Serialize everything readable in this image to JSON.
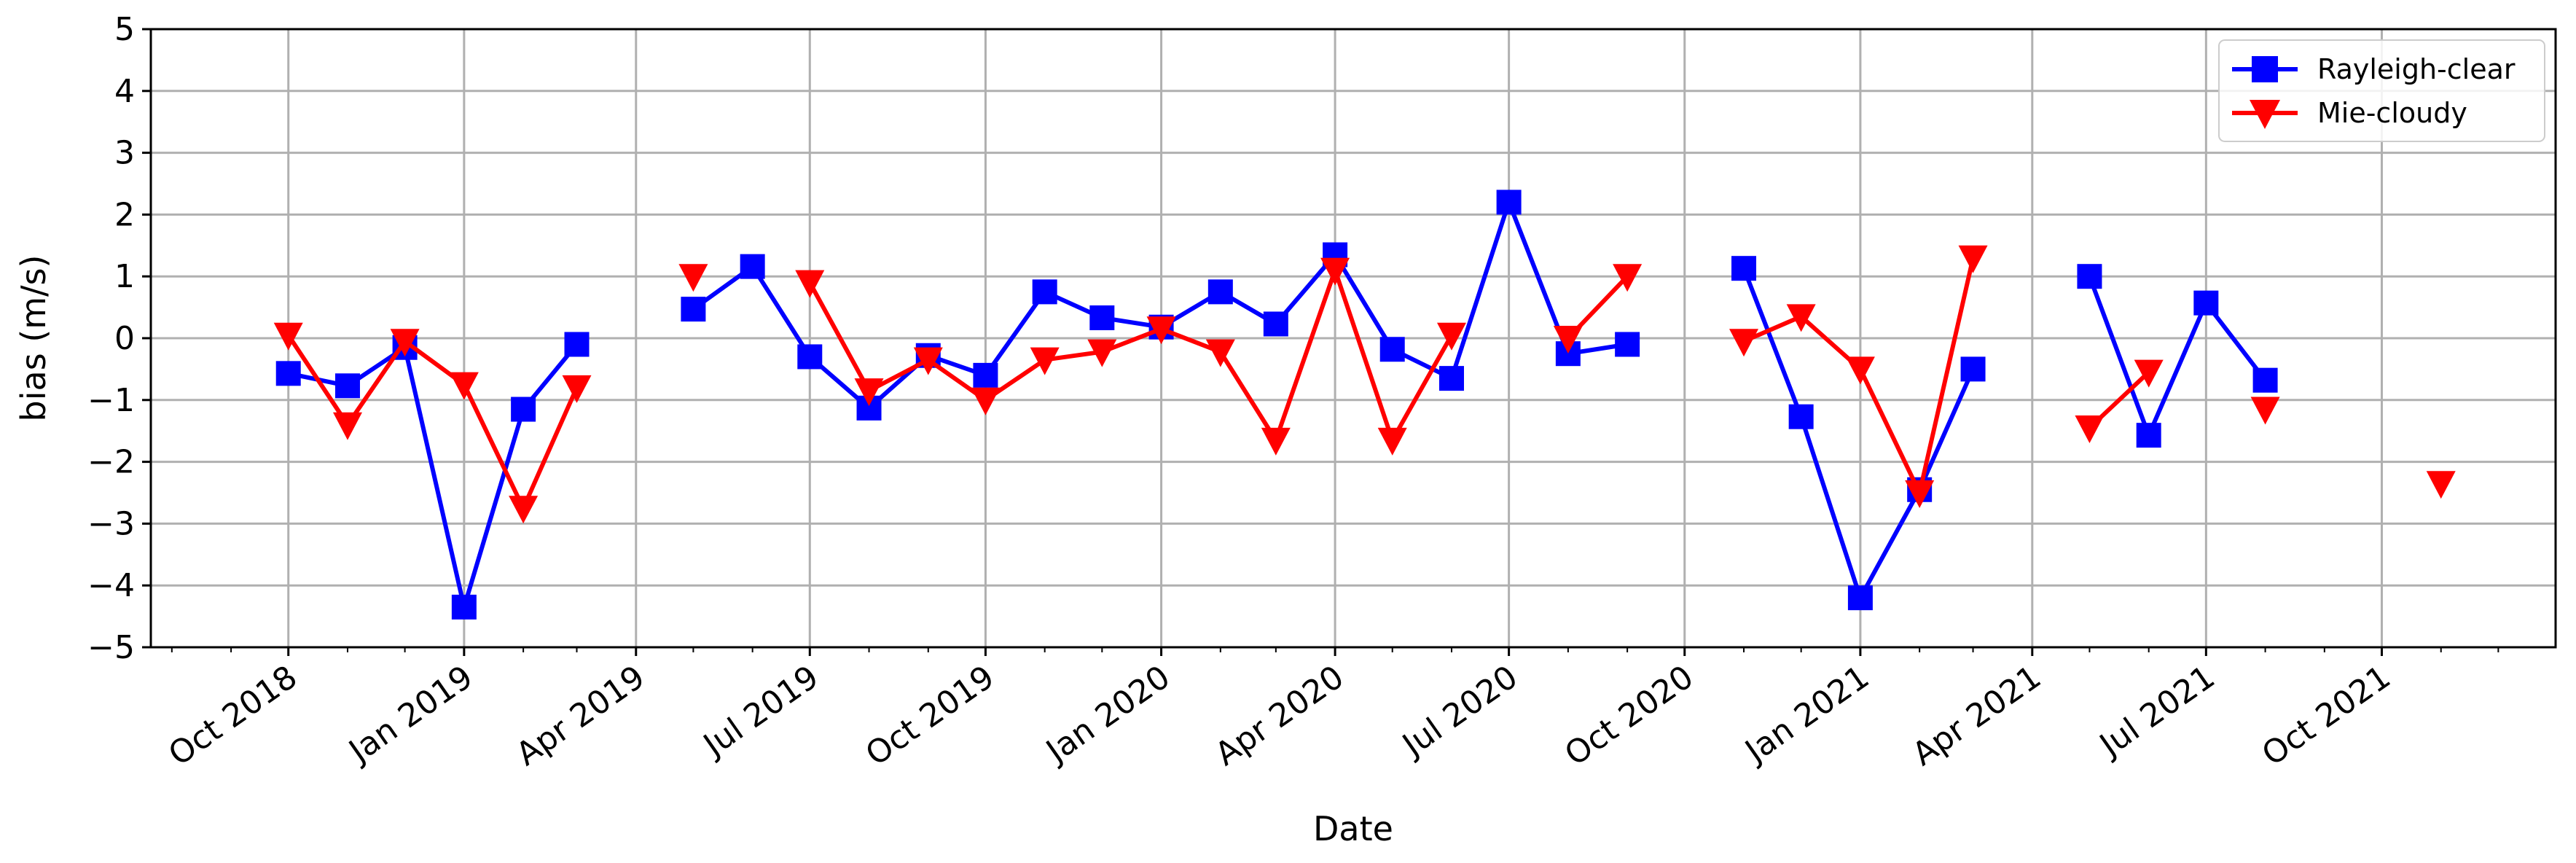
{
  "chart_data": {
    "type": "line",
    "title": "",
    "xlabel": "Date",
    "ylabel": "bias (m/s)",
    "ylim": [
      -5,
      5
    ],
    "yticks": [
      -5,
      -4,
      -3,
      -2,
      -1,
      0,
      1,
      2,
      3,
      4,
      5
    ],
    "xlim": [
      "2018-07-21",
      "2021-12-31"
    ],
    "xticks": [
      {
        "date": "2018-10-01",
        "label": "Oct 2018"
      },
      {
        "date": "2019-01-01",
        "label": "Jan 2019"
      },
      {
        "date": "2019-04-01",
        "label": "Apr 2019"
      },
      {
        "date": "2019-07-01",
        "label": "Jul 2019"
      },
      {
        "date": "2019-10-01",
        "label": "Oct 2019"
      },
      {
        "date": "2020-01-01",
        "label": "Jan 2020"
      },
      {
        "date": "2020-04-01",
        "label": "Apr 2020"
      },
      {
        "date": "2020-07-01",
        "label": "Jul 2020"
      },
      {
        "date": "2020-10-01",
        "label": "Oct 2020"
      },
      {
        "date": "2021-01-01",
        "label": "Jan 2021"
      },
      {
        "date": "2021-04-01",
        "label": "Apr 2021"
      },
      {
        "date": "2021-07-01",
        "label": "Jul 2021"
      },
      {
        "date": "2021-10-01",
        "label": "Oct 2021"
      }
    ],
    "grid": true,
    "legend_position": "top-right",
    "series": [
      {
        "name": "Rayleigh-clear",
        "color": "#0000ff",
        "marker": "square",
        "x": [
          "2018-10-01",
          "2018-11-01",
          "2018-12-01",
          "2019-01-01",
          "2019-02-01",
          "2019-03-01",
          "2019-05-01",
          "2019-06-01",
          "2019-07-01",
          "2019-08-01",
          "2019-09-01",
          "2019-10-01",
          "2019-11-01",
          "2019-12-01",
          "2020-01-01",
          "2020-02-01",
          "2020-03-01",
          "2020-04-01",
          "2020-05-01",
          "2020-06-01",
          "2020-07-01",
          "2020-08-01",
          "2020-09-01",
          "2020-11-01",
          "2020-12-01",
          "2021-01-01",
          "2021-02-01",
          "2021-03-01",
          "2021-05-01",
          "2021-06-01",
          "2021-07-01",
          "2021-08-01"
        ],
        "y": [
          -0.57,
          -0.77,
          -0.15,
          -4.35,
          -1.15,
          -0.1,
          0.47,
          1.16,
          -0.3,
          -1.13,
          -0.28,
          -0.6,
          0.75,
          0.33,
          0.18,
          0.75,
          0.23,
          1.35,
          -0.18,
          -0.65,
          2.2,
          -0.25,
          -0.1,
          1.13,
          -1.27,
          -4.2,
          -2.45,
          -0.5,
          1.0,
          -1.57,
          0.57,
          -0.68
        ],
        "segments": [
          [
            0,
            5
          ],
          [
            6,
            22
          ],
          [
            23,
            27
          ],
          [
            28,
            31
          ]
        ]
      },
      {
        "name": "Mie-cloudy",
        "color": "#ff0000",
        "marker": "triangle-down",
        "x": [
          "2018-10-01",
          "2018-11-01",
          "2018-12-01",
          "2019-01-01",
          "2019-02-01",
          "2019-03-01",
          "2019-05-01",
          "2019-07-01",
          "2019-08-01",
          "2019-09-01",
          "2019-10-01",
          "2019-11-01",
          "2019-12-01",
          "2020-01-01",
          "2020-02-01",
          "2020-03-01",
          "2020-04-01",
          "2020-05-01",
          "2020-06-01",
          "2020-08-01",
          "2020-09-01",
          "2020-11-01",
          "2020-12-01",
          "2021-01-01",
          "2021-02-01",
          "2021-03-01",
          "2021-05-01",
          "2021-06-01",
          "2021-08-01",
          "2021-11-01"
        ],
        "y": [
          0.05,
          -1.4,
          -0.05,
          -0.75,
          -2.75,
          -0.8,
          1.0,
          0.9,
          -0.85,
          -0.35,
          -1.0,
          -0.35,
          -0.22,
          0.15,
          -0.22,
          -1.65,
          1.1,
          -1.65,
          0.05,
          0.0,
          1.0,
          -0.05,
          0.35,
          -0.5,
          -2.5,
          1.3,
          -1.45,
          -0.55,
          -1.15,
          -2.35
        ],
        "segments": [
          [
            0,
            5
          ],
          [
            6,
            6
          ],
          [
            7,
            18
          ],
          [
            19,
            20
          ],
          [
            21,
            25
          ],
          [
            26,
            27
          ],
          [
            28,
            28
          ],
          [
            29,
            29
          ]
        ]
      }
    ]
  }
}
